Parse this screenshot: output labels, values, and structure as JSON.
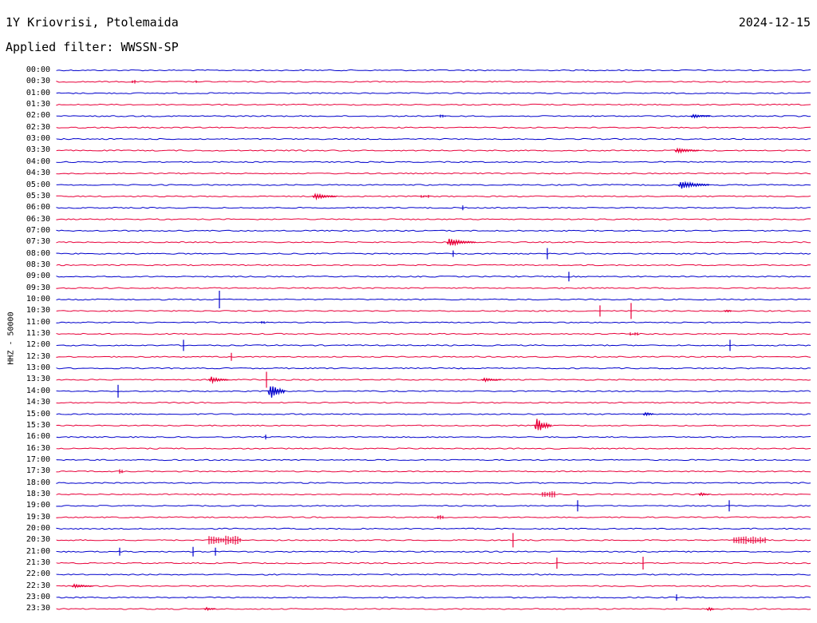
{
  "header": {
    "station": "1Y Kriovrisi, Ptolemaida",
    "date": "2024-12-15",
    "filter": "Applied filter: WWSSN-SP",
    "ylabel": "HHZ - 50000"
  },
  "colors": {
    "even_row": "#0000cc",
    "odd_row": "#e8003a"
  },
  "rows": [
    {
      "label": "00:00"
    },
    {
      "label": "00:30"
    },
    {
      "label": "01:00"
    },
    {
      "label": "01:30"
    },
    {
      "label": "02:00"
    },
    {
      "label": "02:30"
    },
    {
      "label": "03:00"
    },
    {
      "label": "03:30"
    },
    {
      "label": "04:00"
    },
    {
      "label": "04:30"
    },
    {
      "label": "05:00"
    },
    {
      "label": "05:30"
    },
    {
      "label": "06:00"
    },
    {
      "label": "06:30"
    },
    {
      "label": "07:00"
    },
    {
      "label": "07:30"
    },
    {
      "label": "08:00"
    },
    {
      "label": "08:30"
    },
    {
      "label": "09:00"
    },
    {
      "label": "09:30"
    },
    {
      "label": "10:00"
    },
    {
      "label": "10:30"
    },
    {
      "label": "11:00"
    },
    {
      "label": "11:30"
    },
    {
      "label": "12:00"
    },
    {
      "label": "12:30"
    },
    {
      "label": "13:00"
    },
    {
      "label": "13:30"
    },
    {
      "label": "14:00"
    },
    {
      "label": "14:30"
    },
    {
      "label": "15:00"
    },
    {
      "label": "15:30"
    },
    {
      "label": "16:00"
    },
    {
      "label": "16:30"
    },
    {
      "label": "17:00"
    },
    {
      "label": "17:30"
    },
    {
      "label": "18:00"
    },
    {
      "label": "18:30"
    },
    {
      "label": "19:00"
    },
    {
      "label": "19:30"
    },
    {
      "label": "20:00"
    },
    {
      "label": "20:30"
    },
    {
      "label": "21:00"
    },
    {
      "label": "21:30"
    },
    {
      "label": "22:00"
    },
    {
      "label": "22:30"
    },
    {
      "label": "23:00"
    },
    {
      "label": "23:30"
    }
  ]
}
